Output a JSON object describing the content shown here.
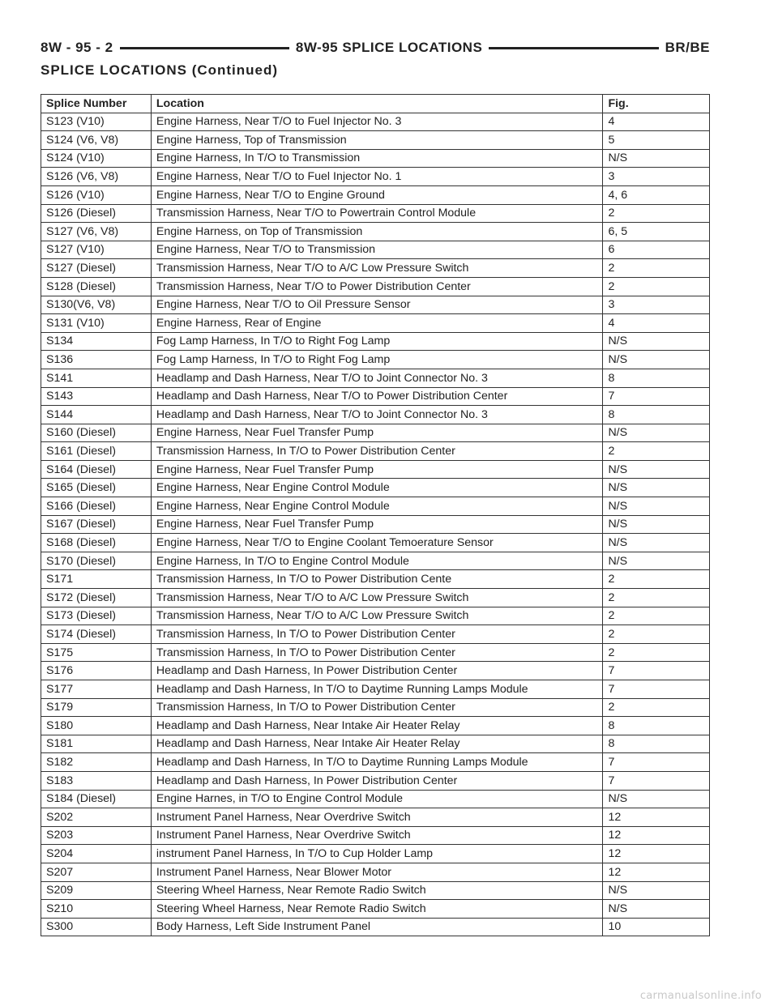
{
  "header": {
    "page_number": "8W - 95 - 2",
    "section_title": "8W-95 SPLICE LOCATIONS",
    "model_code": "BR/BE"
  },
  "subtitle": "SPLICE LOCATIONS (Continued)",
  "table": {
    "columns": [
      "Splice Number",
      "Location",
      "Fig."
    ],
    "rows": [
      [
        "S123 (V10)",
        "Engine Harness, Near T/O to Fuel Injector No. 3",
        "4"
      ],
      [
        "S124 (V6, V8)",
        "Engine Harness, Top of Transmission",
        "5"
      ],
      [
        "S124 (V10)",
        "Engine Harness, In T/O to Transmission",
        "N/S"
      ],
      [
        "S126 (V6, V8)",
        "Engine Harness, Near T/O to Fuel Injector No. 1",
        "3"
      ],
      [
        "S126 (V10)",
        "Engine Harness, Near T/O to Engine Ground",
        "4, 6"
      ],
      [
        "S126 (Diesel)",
        "Transmission Harness, Near T/O to Powertrain Control Module",
        "2"
      ],
      [
        "S127 (V6, V8)",
        "Engine Harness, on Top of Transmission",
        "6, 5"
      ],
      [
        "S127 (V10)",
        "Engine Harness, Near T/O to Transmission",
        "6"
      ],
      [
        "S127 (Diesel)",
        "Transmission Harness, Near T/O to A/C Low Pressure Switch",
        "2"
      ],
      [
        "S128 (Diesel)",
        "Transmission Harness, Near T/O to Power Distribution Center",
        "2"
      ],
      [
        "S130(V6, V8)",
        "Engine Harness, Near T/O to Oil Pressure Sensor",
        "3"
      ],
      [
        "S131 (V10)",
        "Engine Harness, Rear of Engine",
        "4"
      ],
      [
        "S134",
        "Fog Lamp Harness, In T/O to Right Fog Lamp",
        "N/S"
      ],
      [
        "S136",
        "Fog Lamp Harness, In T/O to Right Fog Lamp",
        "N/S"
      ],
      [
        "S141",
        "Headlamp and Dash Harness, Near T/O to Joint Connector No. 3",
        "8"
      ],
      [
        "S143",
        "Headlamp and Dash Harness, Near T/O to Power Distribution Center",
        "7"
      ],
      [
        "S144",
        "Headlamp and Dash Harness, Near T/O to Joint Connector No. 3",
        "8"
      ],
      [
        "S160 (Diesel)",
        "Engine Harness, Near Fuel Transfer Pump",
        "N/S"
      ],
      [
        "S161 (Diesel)",
        "Transmission Harness, In T/O to Power Distribution Center",
        "2"
      ],
      [
        "S164 (Diesel)",
        "Engine Harness, Near Fuel Transfer Pump",
        "N/S"
      ],
      [
        "S165 (Diesel)",
        "Engine Harness, Near Engine Control Module",
        "N/S"
      ],
      [
        "S166 (Diesel)",
        "Engine Harness, Near Engine Control Module",
        "N/S"
      ],
      [
        "S167 (Diesel)",
        "Engine Harness, Near Fuel Transfer Pump",
        "N/S"
      ],
      [
        "S168 (Diesel)",
        "Engine Harness, Near T/O to Engine Coolant Temoerature Sensor",
        "N/S"
      ],
      [
        "S170 (Diesel)",
        "Engine Harness, In T/O to Engine Control Module",
        "N/S"
      ],
      [
        "S171",
        "Transmission Harness, In T/O to Power Distribution Cente",
        "2"
      ],
      [
        "S172 (Diesel)",
        "Transmission Harness, Near T/O to A/C Low Pressure Switch",
        "2"
      ],
      [
        "S173 (Diesel)",
        "Transmission Harness, Near T/O to A/C Low Pressure Switch",
        "2"
      ],
      [
        "S174 (Diesel)",
        "Transmission Harness, In T/O to Power Distribution Center",
        "2"
      ],
      [
        "S175",
        "Transmission Harness, In T/O to Power Distribution Center",
        "2"
      ],
      [
        "S176",
        "Headlamp and Dash Harness, In Power Distribution Center",
        "7"
      ],
      [
        "S177",
        "Headlamp and Dash Harness, In T/O to Daytime Running Lamps Module",
        "7"
      ],
      [
        "S179",
        "Transmission Harness, In T/O to Power Distribution Center",
        "2"
      ],
      [
        "S180",
        "Headlamp and Dash Harness, Near Intake Air Heater Relay",
        "8"
      ],
      [
        "S181",
        "Headlamp and Dash Harness, Near Intake Air Heater Relay",
        "8"
      ],
      [
        "S182",
        "Headlamp and Dash Harness, In T/O to Daytime Running Lamps Module",
        "7"
      ],
      [
        "S183",
        "Headlamp and Dash Harness, In Power Distribution Center",
        "7"
      ],
      [
        "S184 (Diesel)",
        "Engine Harnes, in T/O to Engine Control Module",
        "N/S"
      ],
      [
        "S202",
        "Instrument Panel Harness, Near Overdrive Switch",
        "12"
      ],
      [
        "S203",
        "Instrument Panel Harness, Near Overdrive Switch",
        "12"
      ],
      [
        "S204",
        "instrument Panel Harness, In T/O to Cup Holder Lamp",
        "12"
      ],
      [
        "S207",
        "Instrument Panel Harness, Near Blower Motor",
        "12"
      ],
      [
        "S209",
        "Steering Wheel Harness, Near Remote Radio Switch",
        "N/S"
      ],
      [
        "S210",
        "Steering Wheel Harness, Near Remote Radio Switch",
        "N/S"
      ],
      [
        "S300",
        "Body Harness, Left Side Instrument Panel",
        "10"
      ]
    ]
  },
  "footer": {
    "watermark": "carmanualsonline.info"
  }
}
